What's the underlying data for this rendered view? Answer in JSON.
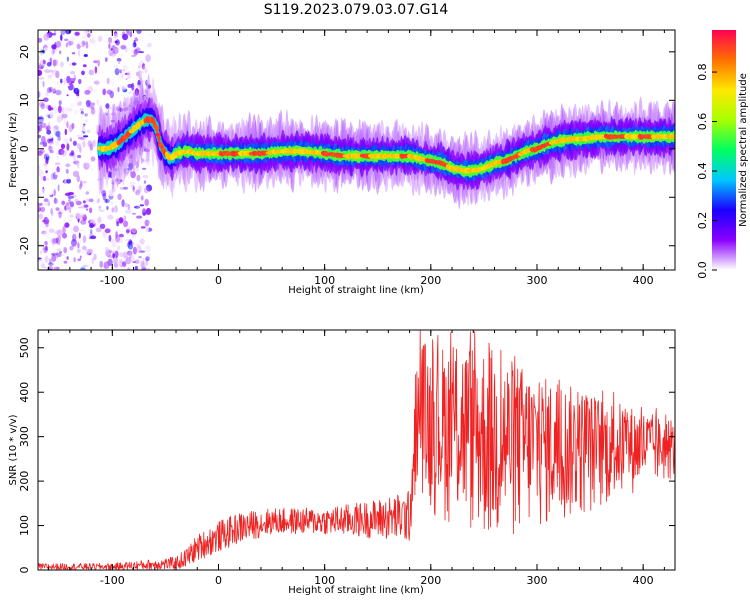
{
  "title": "S119.2023.079.03.07.G14",
  "chart_data": [
    {
      "type": "heatmap",
      "xlabel": "Height of straight line (km)",
      "ylabel": "Frequency (Hz)",
      "xlim": [
        -170,
        430
      ],
      "ylim": [
        -25,
        24.5
      ],
      "x_ticks": [
        -100,
        0,
        100,
        200,
        300,
        400
      ],
      "y_ticks": [
        -20,
        -10,
        0,
        10,
        20
      ],
      "ridge": {
        "x": [
          -105,
          -95,
          -85,
          -75,
          -68,
          -62,
          -58,
          -55,
          -50,
          -45,
          -40,
          -30,
          -20,
          0,
          20,
          40,
          60,
          80,
          100,
          120,
          140,
          160,
          180,
          200,
          210,
          220,
          230,
          240,
          250,
          260,
          270,
          280,
          290,
          300,
          310,
          320,
          330,
          340,
          360,
          380,
          400,
          420,
          430
        ],
        "y": [
          0,
          1,
          3,
          5,
          6,
          6,
          4,
          1,
          -1,
          -2,
          -1,
          -0.5,
          -1,
          -1,
          -1,
          -1,
          -0.5,
          -0.5,
          -1,
          -1.5,
          -1.5,
          -1.5,
          -1.5,
          -2.5,
          -3,
          -4,
          -4.5,
          -4.5,
          -4,
          -3,
          -2.5,
          -1.5,
          -0.5,
          0,
          1,
          1.5,
          2,
          2,
          2.5,
          2.5,
          2.5,
          2.5,
          2.5
        ]
      },
      "colorbar": {
        "label": "Normalized spectral amplitude",
        "range": [
          0,
          0.97
        ],
        "ticks": [
          "0.0",
          "0.2",
          "0.4",
          "0.6",
          "0.8"
        ],
        "colormap": [
          "#ffffff",
          "#8a00ff",
          "#1a00ff",
          "#00c8ff",
          "#00ff60",
          "#a8ff00",
          "#ffe800",
          "#ff7000",
          "#ff0050"
        ]
      }
    },
    {
      "type": "line",
      "xlabel": "Height of straight line (km)",
      "ylabel": "SNR (10 * v/v)",
      "xlim": [
        -170,
        430
      ],
      "ylim": [
        0,
        540
      ],
      "x_ticks": [
        -100,
        0,
        100,
        200,
        300,
        400
      ],
      "y_ticks": [
        0,
        100,
        200,
        300,
        400,
        500
      ],
      "line_color": "#ee2222",
      "envelope": {
        "x": [
          -170,
          -100,
          -60,
          -40,
          -30,
          -20,
          0,
          20,
          50,
          100,
          150,
          180,
          185,
          190,
          200,
          230,
          260,
          300,
          350,
          400,
          430
        ],
        "low": [
          0,
          0,
          0,
          0,
          5,
          20,
          40,
          60,
          80,
          80,
          70,
          60,
          150,
          180,
          120,
          80,
          40,
          80,
          120,
          180,
          200
        ],
        "high": [
          15,
          15,
          25,
          30,
          50,
          80,
          110,
          130,
          140,
          140,
          160,
          180,
          440,
          530,
          500,
          520,
          500,
          440,
          400,
          360,
          330
        ]
      }
    }
  ]
}
